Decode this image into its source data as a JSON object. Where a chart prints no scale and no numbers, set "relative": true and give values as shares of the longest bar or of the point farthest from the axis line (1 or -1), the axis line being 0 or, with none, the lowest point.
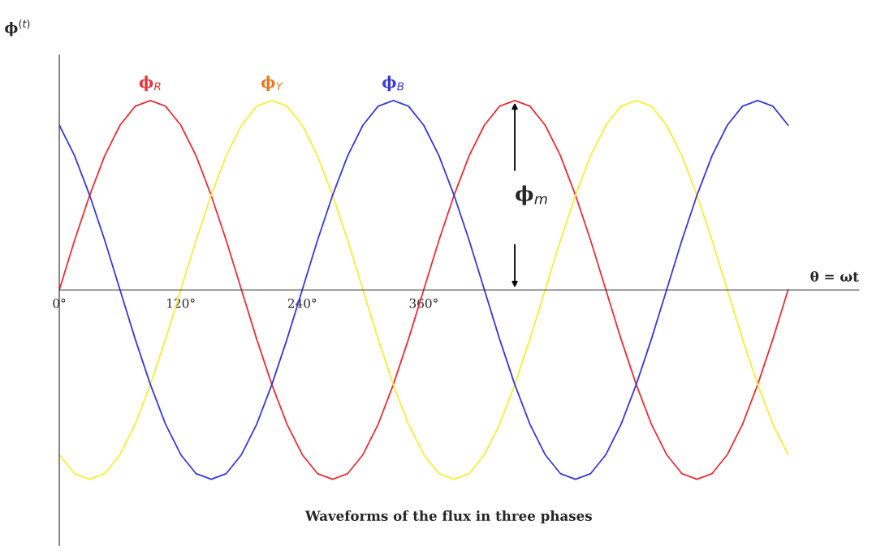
{
  "chart_data": {
    "type": "line",
    "relative": true,
    "title": "Waveforms of the flux in three phases",
    "ylabel": "ϕ$^{(t)}$",
    "xlabel": "θ = ωt",
    "x": [
      0,
      15,
      30,
      45,
      60,
      75,
      90,
      105,
      120,
      135,
      150,
      165,
      180,
      195,
      210,
      225,
      240,
      255,
      270,
      285,
      300,
      315,
      330,
      345,
      360,
      375,
      390,
      405,
      420,
      435,
      450,
      465,
      480,
      495,
      510,
      525,
      540,
      555,
      570,
      585,
      600,
      615,
      630,
      645,
      660,
      675,
      690,
      705,
      720
    ],
    "xlim": [
      0,
      790
    ],
    "xticks": [
      {
        "value": 0,
        "label": "0°"
      },
      {
        "value": 120,
        "label": "120°"
      },
      {
        "value": 240,
        "label": "240°"
      },
      {
        "value": 360,
        "label": "360°"
      }
    ],
    "series": [
      {
        "name": "ϕ$_{R}$",
        "color": "#e8303a",
        "values": [
          0,
          0.26,
          0.5,
          0.71,
          0.87,
          0.97,
          1,
          0.97,
          0.87,
          0.71,
          0.5,
          0.26,
          0,
          -0.26,
          -0.5,
          -0.71,
          -0.87,
          -0.97,
          -1,
          -0.97,
          -0.87,
          -0.71,
          -0.5,
          -0.26,
          0,
          0.26,
          0.5,
          0.71,
          0.87,
          0.97,
          1,
          0.97,
          0.87,
          0.71,
          0.5,
          0.26,
          0,
          -0.26,
          -0.5,
          -0.71,
          -0.87,
          -0.97,
          -1,
          -0.97,
          -0.87,
          -0.71,
          -0.5,
          -0.26,
          0
        ]
      },
      {
        "name": "ϕ$_{Y}$",
        "color": "#f5f03a",
        "values": [
          -0.87,
          -0.97,
          -1,
          -0.97,
          -0.87,
          -0.71,
          -0.5,
          -0.26,
          0,
          0.26,
          0.5,
          0.71,
          0.87,
          0.97,
          1,
          0.97,
          0.87,
          0.71,
          0.5,
          0.26,
          0,
          -0.26,
          -0.5,
          -0.71,
          -0.87,
          -0.97,
          -1,
          -0.97,
          -0.87,
          -0.71,
          -0.5,
          -0.26,
          0,
          0.26,
          0.5,
          0.71,
          0.87,
          0.97,
          1,
          0.97,
          0.87,
          0.71,
          0.5,
          0.26,
          0,
          -0.26,
          -0.5,
          -0.71,
          -0.87
        ]
      },
      {
        "name": "ϕ$_{B}$",
        "color": "#3a3ad8",
        "values": [
          0.87,
          0.71,
          0.5,
          0.26,
          0,
          -0.26,
          -0.5,
          -0.71,
          -0.87,
          -0.97,
          -1,
          -0.97,
          -0.87,
          -0.71,
          -0.5,
          -0.26,
          0,
          0.26,
          0.5,
          0.71,
          0.87,
          0.97,
          1,
          0.97,
          0.87,
          0.71,
          0.5,
          0.26,
          0,
          -0.26,
          -0.5,
          -0.71,
          -0.87,
          -0.97,
          -1,
          -0.97,
          -0.87,
          -0.71,
          -0.5,
          -0.26,
          0,
          0.26,
          0.5,
          0.71,
          0.87,
          0.97,
          1,
          0.97,
          0.87
        ]
      }
    ],
    "annotations": [
      "ϕ$_{m}$"
    ],
    "grid": false,
    "legend": false,
    "marker": "none",
    "line_style": "solid"
  }
}
